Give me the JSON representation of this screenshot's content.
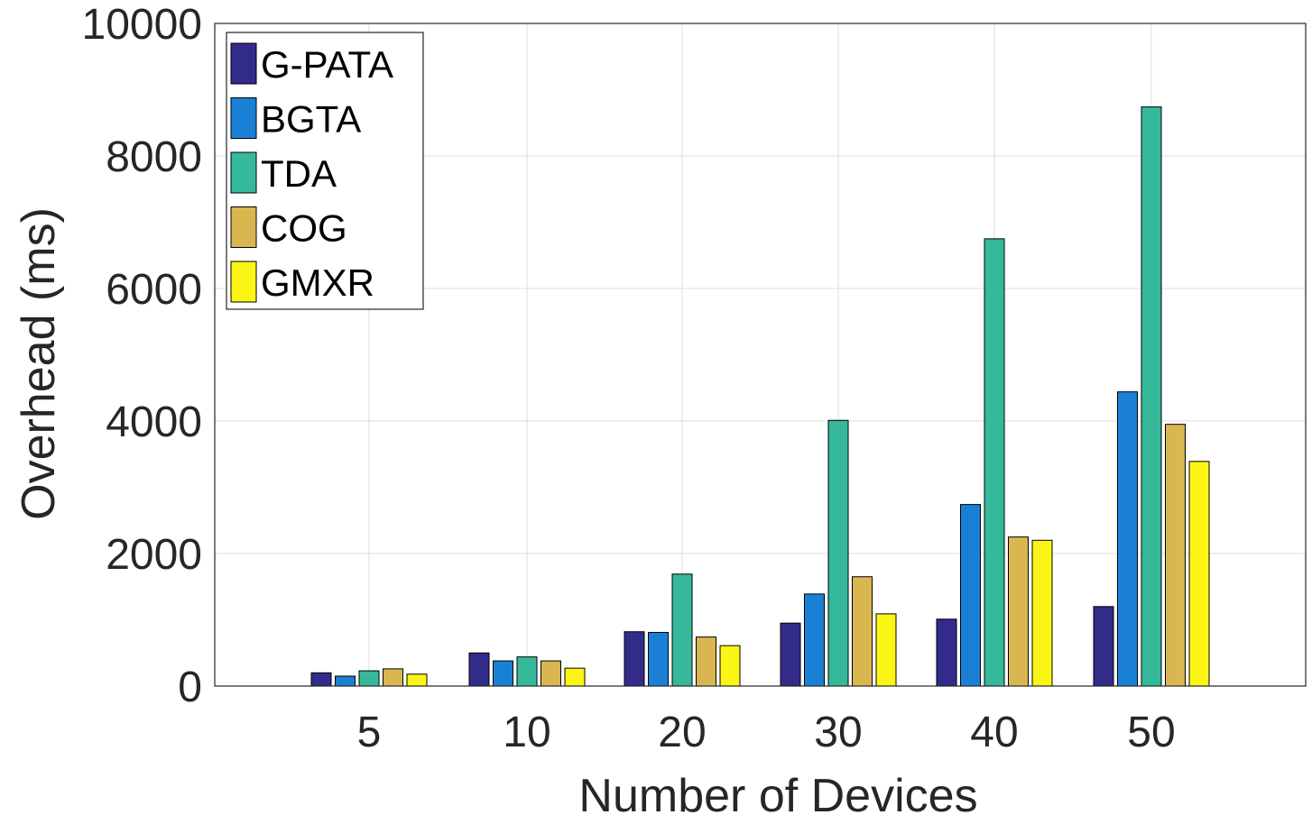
{
  "chart_data": {
    "type": "bar",
    "title": "",
    "xlabel": "Number of Devices",
    "ylabel": "Overhead (ms)",
    "categories": [
      "5",
      "10",
      "20",
      "30",
      "40",
      "50"
    ],
    "ylim": [
      0,
      10000
    ],
    "yticks": [
      "0",
      "2000",
      "4000",
      "6000",
      "8000",
      "10000"
    ],
    "grid": true,
    "legend": "top-left",
    "series": [
      {
        "name": "G-PATA",
        "color": "#332B8A",
        "values": [
          200,
          500,
          820,
          950,
          1010,
          1200
        ]
      },
      {
        "name": "BGTA",
        "color": "#1A80D6",
        "values": [
          150,
          380,
          810,
          1390,
          2740,
          4440
        ]
      },
      {
        "name": "TDA",
        "color": "#36B99B",
        "values": [
          230,
          440,
          1690,
          4010,
          6750,
          8740
        ]
      },
      {
        "name": "COG",
        "color": "#D9B64F",
        "values": [
          260,
          380,
          740,
          1650,
          2250,
          3950
        ]
      },
      {
        "name": "GMXR",
        "color": "#FAF514",
        "values": [
          180,
          270,
          610,
          1090,
          2200,
          3390
        ]
      }
    ]
  }
}
